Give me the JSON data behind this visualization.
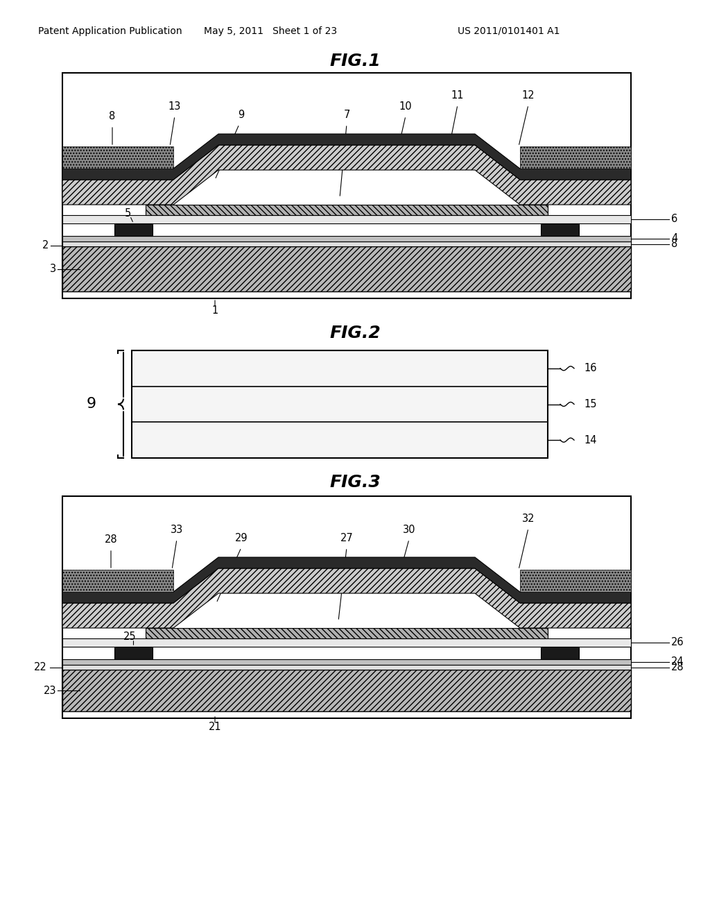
{
  "header_left": "Patent Application Publication",
  "header_mid": "May 5, 2011   Sheet 1 of 23",
  "header_right": "US 2011/0101401 A1",
  "fig1_title": "FIG.1",
  "fig2_title": "FIG.2",
  "fig3_title": "FIG.3",
  "bg_color": "#ffffff",
  "line_color": "#000000"
}
